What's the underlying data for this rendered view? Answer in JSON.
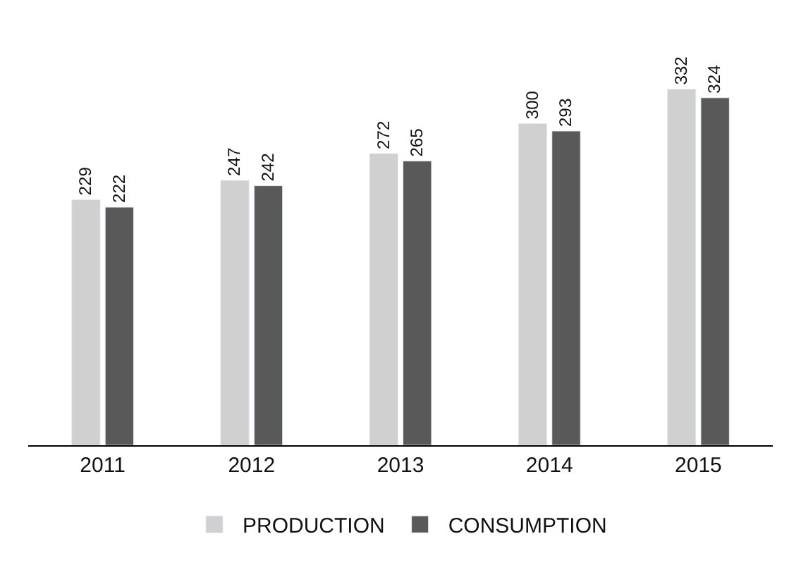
{
  "chart_data": {
    "type": "bar",
    "categories": [
      "2011",
      "2012",
      "2013",
      "2014",
      "2015"
    ],
    "series": [
      {
        "name": "PRODUCTION",
        "color": "#d0d0d0",
        "values": [
          229,
          247,
          272,
          300,
          332
        ]
      },
      {
        "name": "CONSUMPTION",
        "color": "#595959",
        "values": [
          222,
          242,
          265,
          293,
          324
        ]
      }
    ],
    "data_labels": true,
    "legend": "bottom",
    "tick_labels": "x"
  }
}
